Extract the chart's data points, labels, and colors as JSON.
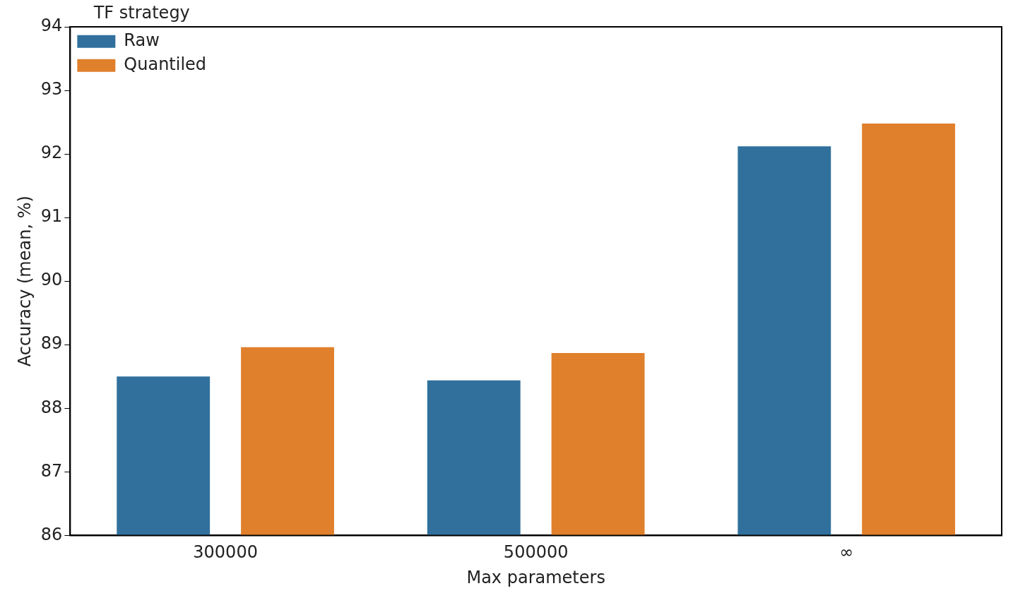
{
  "chart_data": {
    "type": "bar",
    "xlabel": "Max parameters",
    "ylabel": "Accuracy (mean, %)",
    "legend_title": "TF strategy",
    "legend": "top left",
    "grid": false,
    "categories": [
      "300000",
      "500000",
      "∞"
    ],
    "series": [
      {
        "name": "Raw",
        "color": "#31709c",
        "values": [
          88.5,
          88.44,
          92.12
        ]
      },
      {
        "name": "Quantiled",
        "color": "#e0802c",
        "values": [
          88.96,
          88.87,
          92.48
        ]
      }
    ],
    "ylim": [
      86,
      94
    ],
    "yticks": [
      86,
      87,
      88,
      89,
      90,
      91,
      92,
      93,
      94
    ]
  }
}
